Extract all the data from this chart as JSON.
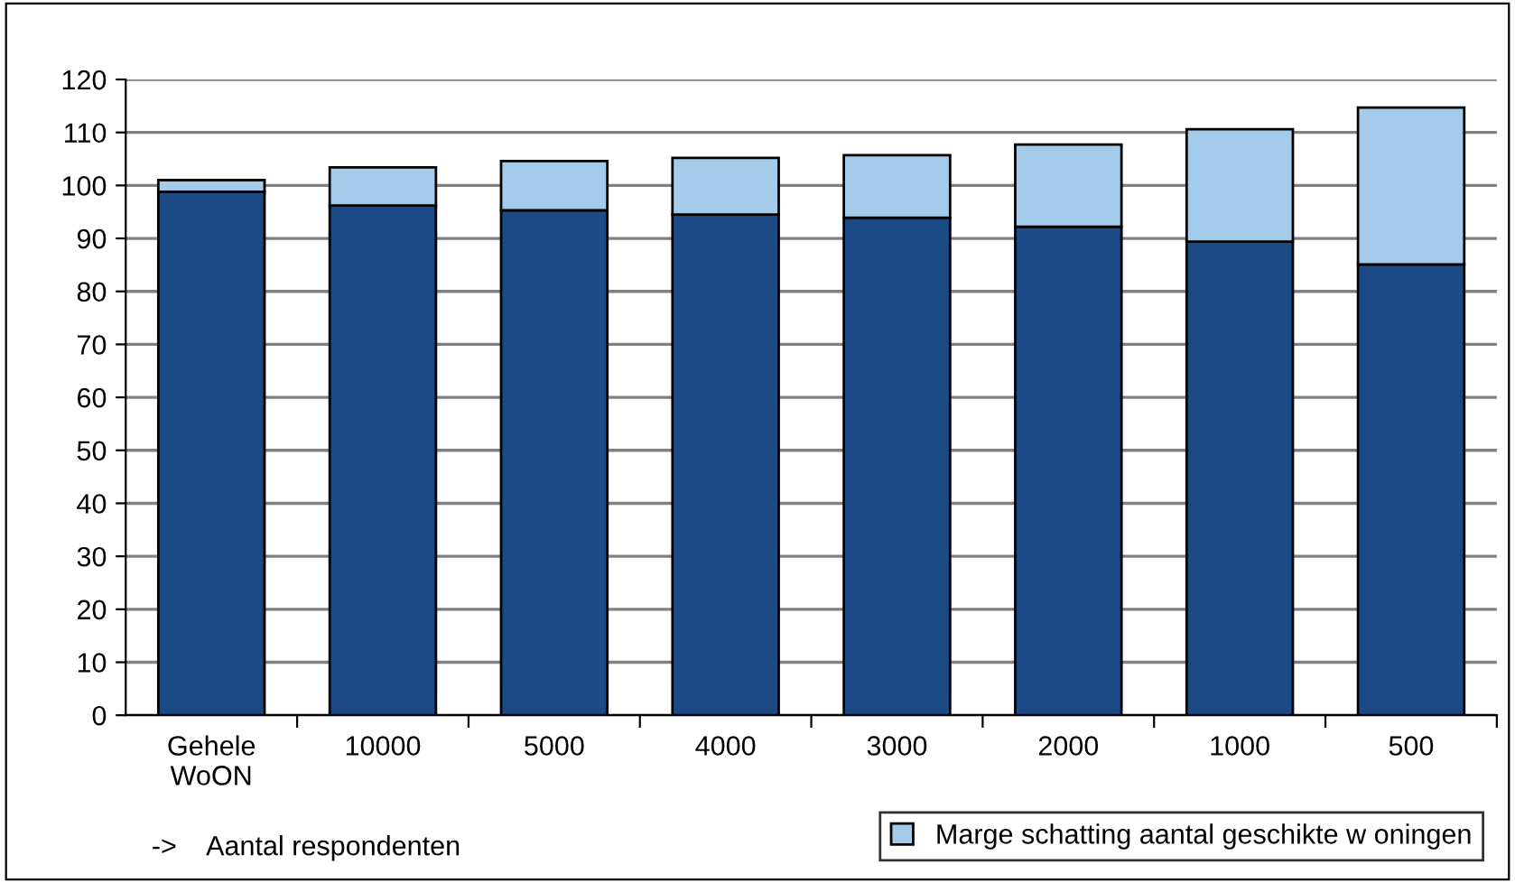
{
  "chart_data": {
    "type": "bar",
    "stacked": true,
    "categories": [
      "Gehele\nWoON",
      "10000",
      "5000",
      "4000",
      "3000",
      "2000",
      "1000",
      "500"
    ],
    "series": [
      {
        "color": "#1b4a87",
        "values": [
          98.8,
          96.2,
          95.3,
          94.5,
          93.9,
          92.2,
          89.4,
          85.1
        ]
      },
      {
        "name": "Marge schatting aantal geschikte w oningen",
        "color": "#a4cbea",
        "values": [
          2.2,
          7.2,
          9.3,
          10.7,
          11.8,
          15.5,
          21.2,
          29.6
        ]
      }
    ],
    "ylim": [
      0,
      120
    ],
    "yticks": [
      0,
      10,
      20,
      30,
      40,
      50,
      60,
      70,
      80,
      90,
      100,
      110,
      120
    ],
    "grid": "y",
    "legend": "bottom right",
    "annotations": [
      "->    Aantal respondenten"
    ]
  }
}
